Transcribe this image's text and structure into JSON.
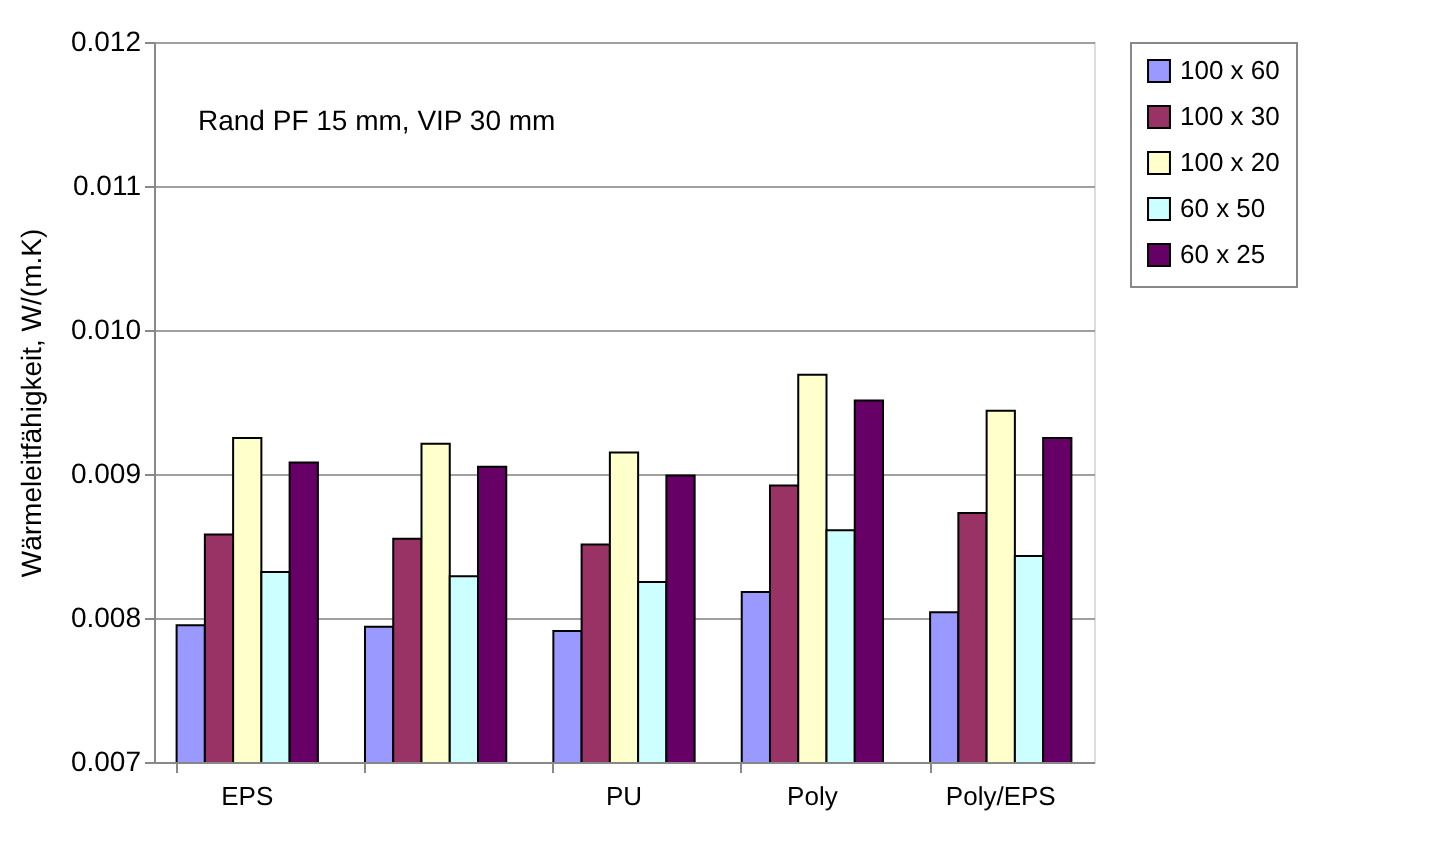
{
  "chart_data": {
    "type": "bar",
    "ylabel": "Wärmeleitfähigkeit, W/(m.K)",
    "annotations": [
      "Rand PF 15 mm, VIP 30 mm"
    ],
    "categories": [
      "EPS",
      null,
      "PU",
      "Poly",
      "Poly/EPS"
    ],
    "series": [
      {
        "name": "100 x 60",
        "color": "#9999ff",
        "values": [
          0.00795,
          0.00794,
          0.00791,
          0.00818,
          0.00804
        ]
      },
      {
        "name": "100 x 30",
        "color": "#993366",
        "values": [
          0.00858,
          0.00855,
          0.00851,
          0.00892,
          0.00873
        ]
      },
      {
        "name": "100 x 20",
        "color": "#ffffcc",
        "values": [
          0.00925,
          0.00921,
          0.00915,
          0.00969,
          0.00944
        ]
      },
      {
        "name": "60 x 50",
        "color": "#ccffff",
        "values": [
          0.00832,
          0.00829,
          0.00825,
          0.00861,
          0.00843
        ]
      },
      {
        "name": "60 x 25",
        "color": "#660066",
        "values": [
          0.00908,
          0.00905,
          0.00899,
          0.00951,
          0.00925
        ]
      }
    ],
    "ylim": [
      0.007,
      0.012
    ],
    "yticks": [
      {
        "value": 0.007,
        "label": "0.007"
      },
      {
        "value": 0.008,
        "label": "0.008"
      },
      {
        "value": 0.009,
        "label": "0.009"
      },
      {
        "value": 0.01,
        "label": "0.010"
      },
      {
        "value": 0.011,
        "label": "0.011"
      },
      {
        "value": 0.012,
        "label": "0.012"
      }
    ],
    "grid": "y",
    "legend": "right"
  }
}
